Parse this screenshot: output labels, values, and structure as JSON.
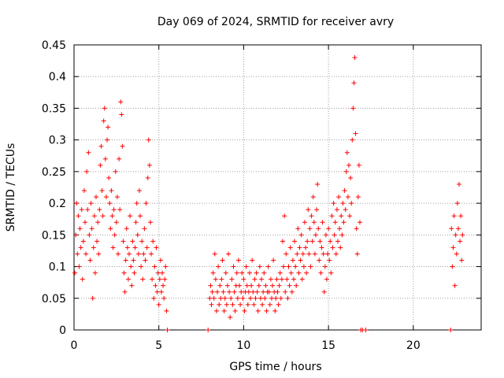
{
  "chart_data": {
    "type": "scatter",
    "title": "Day 069 of 2024, SRMTID for receiver avry",
    "xlabel": "GPS time / hours",
    "ylabel": "SRMTID / TECUs",
    "xlim": [
      0,
      24
    ],
    "ylim": [
      0,
      0.45
    ],
    "x_ticks": [
      0,
      5,
      10,
      15,
      20
    ],
    "x_tick_labels": [
      "0",
      "5",
      "10",
      "15",
      "20"
    ],
    "y_ticks": [
      0,
      0.05,
      0.1,
      0.15,
      0.2,
      0.25,
      0.3,
      0.35,
      0.4,
      0.45
    ],
    "y_tick_labels": [
      "0",
      "0.05",
      "0.1",
      "0.15",
      "0.2",
      "0.25",
      "0.3",
      "0.35",
      "0.4",
      "0.45"
    ],
    "grid": true,
    "marker": "+",
    "series": [
      {
        "name": "SRMTID",
        "color": "#ff0000",
        "points": [
          [
            0.05,
            0.09
          ],
          [
            0.1,
            0.15
          ],
          [
            0.15,
            0.2
          ],
          [
            0.2,
            0.12
          ],
          [
            0.25,
            0.18
          ],
          [
            0.3,
            0.1
          ],
          [
            0.35,
            0.16
          ],
          [
            0.4,
            0.13
          ],
          [
            0.45,
            0.19
          ],
          [
            0.5,
            0.08
          ],
          [
            0.55,
            0.14
          ],
          [
            0.6,
            0.22
          ],
          [
            0.65,
            0.17
          ],
          [
            0.7,
            0.12
          ],
          [
            0.75,
            0.25
          ],
          [
            0.8,
            0.19
          ],
          [
            0.85,
            0.28
          ],
          [
            0.9,
            0.15
          ],
          [
            0.95,
            0.11
          ],
          [
            1.0,
            0.2
          ],
          [
            1.05,
            0.16
          ],
          [
            1.1,
            0.05
          ],
          [
            1.15,
            0.13
          ],
          [
            1.2,
            0.18
          ],
          [
            1.25,
            0.09
          ],
          [
            1.3,
            0.21
          ],
          [
            1.35,
            0.14
          ],
          [
            1.4,
            0.17
          ],
          [
            1.45,
            0.12
          ],
          [
            1.5,
            0.19
          ],
          [
            1.55,
            0.26
          ],
          [
            1.6,
            0.29
          ],
          [
            1.65,
            0.22
          ],
          [
            1.7,
            0.18
          ],
          [
            1.75,
            0.33
          ],
          [
            1.8,
            0.35
          ],
          [
            1.85,
            0.27
          ],
          [
            1.9,
            0.21
          ],
          [
            1.95,
            0.3
          ],
          [
            2.0,
            0.32
          ],
          [
            2.05,
            0.24
          ],
          [
            2.1,
            0.2
          ],
          [
            2.15,
            0.16
          ],
          [
            2.2,
            0.22
          ],
          [
            2.25,
            0.18
          ],
          [
            2.3,
            0.13
          ],
          [
            2.35,
            0.19
          ],
          [
            2.4,
            0.15
          ],
          [
            2.45,
            0.25
          ],
          [
            2.5,
            0.17
          ],
          [
            2.55,
            0.21
          ],
          [
            2.6,
            0.12
          ],
          [
            2.65,
            0.27
          ],
          [
            2.7,
            0.19
          ],
          [
            2.75,
            0.36
          ],
          [
            2.8,
            0.34
          ],
          [
            2.85,
            0.29
          ],
          [
            2.9,
            0.14
          ],
          [
            2.95,
            0.09
          ],
          [
            3.0,
            0.06
          ],
          [
            3.05,
            0.11
          ],
          [
            3.1,
            0.16
          ],
          [
            3.15,
            0.13
          ],
          [
            3.2,
            0.08
          ],
          [
            3.25,
            0.12
          ],
          [
            3.3,
            0.18
          ],
          [
            3.35,
            0.1
          ],
          [
            3.4,
            0.07
          ],
          [
            3.45,
            0.14
          ],
          [
            3.5,
            0.11
          ],
          [
            3.55,
            0.09
          ],
          [
            3.6,
            0.13
          ],
          [
            3.65,
            0.17
          ],
          [
            3.7,
            0.2
          ],
          [
            3.75,
            0.15
          ],
          [
            3.8,
            0.12
          ],
          [
            3.85,
            0.22
          ],
          [
            3.9,
            0.18
          ],
          [
            3.95,
            0.1
          ],
          [
            4.0,
            0.14
          ],
          [
            4.05,
            0.08
          ],
          [
            4.1,
            0.12
          ],
          [
            4.15,
            0.16
          ],
          [
            4.2,
            0.11
          ],
          [
            4.25,
            0.2
          ],
          [
            4.3,
            0.13
          ],
          [
            4.35,
            0.24
          ],
          [
            4.4,
            0.3
          ],
          [
            4.45,
            0.26
          ],
          [
            4.5,
            0.17
          ],
          [
            4.55,
            0.12
          ],
          [
            4.6,
            0.08
          ],
          [
            4.65,
            0.14
          ],
          [
            4.7,
            0.05
          ],
          [
            4.75,
            0.1
          ],
          [
            4.8,
            0.07
          ],
          [
            4.85,
            0.13
          ],
          [
            4.9,
            0.06
          ],
          [
            4.95,
            0.09
          ],
          [
            5.0,
            0.04
          ],
          [
            5.05,
            0.08
          ],
          [
            5.1,
            0.11
          ],
          [
            5.15,
            0.06
          ],
          [
            5.2,
            0.09
          ],
          [
            5.25,
            0.07
          ],
          [
            5.3,
            0.05
          ],
          [
            5.35,
            0.08
          ],
          [
            5.4,
            0.1
          ],
          [
            5.45,
            0.03
          ],
          [
            5.5,
            0.0
          ],
          [
            7.9,
            0.0
          ],
          [
            8.0,
            0.05
          ],
          [
            8.05,
            0.07
          ],
          [
            8.1,
            0.04
          ],
          [
            8.15,
            0.06
          ],
          [
            8.2,
            0.09
          ],
          [
            8.25,
            0.05
          ],
          [
            8.3,
            0.12
          ],
          [
            8.35,
            0.08
          ],
          [
            8.4,
            0.03
          ],
          [
            8.45,
            0.06
          ],
          [
            8.5,
            0.1
          ],
          [
            8.55,
            0.04
          ],
          [
            8.6,
            0.07
          ],
          [
            8.65,
            0.05
          ],
          [
            8.7,
            0.08
          ],
          [
            8.75,
            0.11
          ],
          [
            8.8,
            0.06
          ],
          [
            8.85,
            0.03
          ],
          [
            8.9,
            0.05
          ],
          [
            8.95,
            0.09
          ],
          [
            9.0,
            0.04
          ],
          [
            9.05,
            0.07
          ],
          [
            9.1,
            0.12
          ],
          [
            9.15,
            0.06
          ],
          [
            9.2,
            0.02
          ],
          [
            9.25,
            0.05
          ],
          [
            9.3,
            0.08
          ],
          [
            9.35,
            0.04
          ],
          [
            9.4,
            0.1
          ],
          [
            9.45,
            0.06
          ],
          [
            9.5,
            0.03
          ],
          [
            9.55,
            0.07
          ],
          [
            9.6,
            0.09
          ],
          [
            9.65,
            0.05
          ],
          [
            9.7,
            0.11
          ],
          [
            9.75,
            0.07
          ],
          [
            9.8,
            0.04
          ],
          [
            9.85,
            0.06
          ],
          [
            9.9,
            0.09
          ],
          [
            9.95,
            0.05
          ],
          [
            10.0,
            0.08
          ],
          [
            10.05,
            0.03
          ],
          [
            10.1,
            0.06
          ],
          [
            10.15,
            0.1
          ],
          [
            10.2,
            0.07
          ],
          [
            10.25,
            0.04
          ],
          [
            10.3,
            0.06
          ],
          [
            10.35,
            0.09
          ],
          [
            10.4,
            0.05
          ],
          [
            10.45,
            0.07
          ],
          [
            10.5,
            0.11
          ],
          [
            10.55,
            0.06
          ],
          [
            10.6,
            0.04
          ],
          [
            10.65,
            0.08
          ],
          [
            10.7,
            0.05
          ],
          [
            10.75,
            0.09
          ],
          [
            10.8,
            0.06
          ],
          [
            10.85,
            0.03
          ],
          [
            10.9,
            0.07
          ],
          [
            10.95,
            0.1
          ],
          [
            11.0,
            0.05
          ],
          [
            11.05,
            0.08
          ],
          [
            11.1,
            0.04
          ],
          [
            11.15,
            0.06
          ],
          [
            11.2,
            0.09
          ],
          [
            11.25,
            0.05
          ],
          [
            11.3,
            0.07
          ],
          [
            11.35,
            0.03
          ],
          [
            11.4,
            0.06
          ],
          [
            11.45,
            0.1
          ],
          [
            11.5,
            0.06
          ],
          [
            11.55,
            0.04
          ],
          [
            11.6,
            0.08
          ],
          [
            11.65,
            0.05
          ],
          [
            11.7,
            0.07
          ],
          [
            11.75,
            0.11
          ],
          [
            11.8,
            0.06
          ],
          [
            11.85,
            0.03
          ],
          [
            11.9,
            0.05
          ],
          [
            11.95,
            0.08
          ],
          [
            12.0,
            0.06
          ],
          [
            12.05,
            0.04
          ],
          [
            12.1,
            0.07
          ],
          [
            12.15,
            0.09
          ],
          [
            12.2,
            0.05
          ],
          [
            12.25,
            0.08
          ],
          [
            12.3,
            0.14
          ],
          [
            12.35,
            0.1
          ],
          [
            12.4,
            0.18
          ],
          [
            12.45,
            0.06
          ],
          [
            12.5,
            0.12
          ],
          [
            12.55,
            0.08
          ],
          [
            12.6,
            0.05
          ],
          [
            12.65,
            0.1
          ],
          [
            12.7,
            0.07
          ],
          [
            12.75,
            0.13
          ],
          [
            12.8,
            0.09
          ],
          [
            12.85,
            0.06
          ],
          [
            12.9,
            0.11
          ],
          [
            12.95,
            0.08
          ],
          [
            13.0,
            0.14
          ],
          [
            13.05,
            0.1
          ],
          [
            13.1,
            0.07
          ],
          [
            13.15,
            0.12
          ],
          [
            13.2,
            0.16
          ],
          [
            13.25,
            0.09
          ],
          [
            13.3,
            0.13
          ],
          [
            13.35,
            0.11
          ],
          [
            13.4,
            0.15
          ],
          [
            13.45,
            0.08
          ],
          [
            13.5,
            0.12
          ],
          [
            13.55,
            0.1
          ],
          [
            13.6,
            0.17
          ],
          [
            13.65,
            0.13
          ],
          [
            13.7,
            0.09
          ],
          [
            13.75,
            0.14
          ],
          [
            13.8,
            0.19
          ],
          [
            13.85,
            0.12
          ],
          [
            13.9,
            0.16
          ],
          [
            13.95,
            0.1
          ],
          [
            14.0,
            0.18
          ],
          [
            14.05,
            0.14
          ],
          [
            14.1,
            0.21
          ],
          [
            14.15,
            0.17
          ],
          [
            14.2,
            0.12
          ],
          [
            14.25,
            0.15
          ],
          [
            14.3,
            0.19
          ],
          [
            14.35,
            0.23
          ],
          [
            14.4,
            0.16
          ],
          [
            14.45,
            0.11
          ],
          [
            14.5,
            0.14
          ],
          [
            14.55,
            0.09
          ],
          [
            14.6,
            0.13
          ],
          [
            14.65,
            0.17
          ],
          [
            14.7,
            0.12
          ],
          [
            14.75,
            0.06
          ],
          [
            14.8,
            0.1
          ],
          [
            14.85,
            0.15
          ],
          [
            14.9,
            0.08
          ],
          [
            14.95,
            0.12
          ],
          [
            15.0,
            0.16
          ],
          [
            15.05,
            0.11
          ],
          [
            15.1,
            0.14
          ],
          [
            15.15,
            0.09
          ],
          [
            15.2,
            0.18
          ],
          [
            15.25,
            0.13
          ],
          [
            15.3,
            0.2
          ],
          [
            15.35,
            0.15
          ],
          [
            15.4,
            0.17
          ],
          [
            15.45,
            0.12
          ],
          [
            15.5,
            0.19
          ],
          [
            15.55,
            0.14
          ],
          [
            15.6,
            0.21
          ],
          [
            15.65,
            0.16
          ],
          [
            15.7,
            0.13
          ],
          [
            15.75,
            0.18
          ],
          [
            15.8,
            0.15
          ],
          [
            15.85,
            0.2
          ],
          [
            15.9,
            0.17
          ],
          [
            15.95,
            0.22
          ],
          [
            16.0,
            0.19
          ],
          [
            16.05,
            0.25
          ],
          [
            16.1,
            0.28
          ],
          [
            16.15,
            0.21
          ],
          [
            16.2,
            0.26
          ],
          [
            16.25,
            0.18
          ],
          [
            16.3,
            0.24
          ],
          [
            16.35,
            0.2
          ],
          [
            16.4,
            0.3
          ],
          [
            16.45,
            0.35
          ],
          [
            16.5,
            0.39
          ],
          [
            16.55,
            0.43
          ],
          [
            16.6,
            0.31
          ],
          [
            16.65,
            0.16
          ],
          [
            16.7,
            0.12
          ],
          [
            16.75,
            0.21
          ],
          [
            16.8,
            0.26
          ],
          [
            16.85,
            0.17
          ],
          [
            16.9,
            0.0
          ],
          [
            17.0,
            0.0
          ],
          [
            17.2,
            0.0
          ],
          [
            22.2,
            0.0
          ],
          [
            22.25,
            0.16
          ],
          [
            22.3,
            0.1
          ],
          [
            22.35,
            0.13
          ],
          [
            22.4,
            0.18
          ],
          [
            22.45,
            0.07
          ],
          [
            22.5,
            0.15
          ],
          [
            22.55,
            0.12
          ],
          [
            22.6,
            0.2
          ],
          [
            22.65,
            0.16
          ],
          [
            22.7,
            0.23
          ],
          [
            22.75,
            0.14
          ],
          [
            22.8,
            0.18
          ],
          [
            22.85,
            0.11
          ],
          [
            22.9,
            0.15
          ]
        ]
      }
    ]
  }
}
